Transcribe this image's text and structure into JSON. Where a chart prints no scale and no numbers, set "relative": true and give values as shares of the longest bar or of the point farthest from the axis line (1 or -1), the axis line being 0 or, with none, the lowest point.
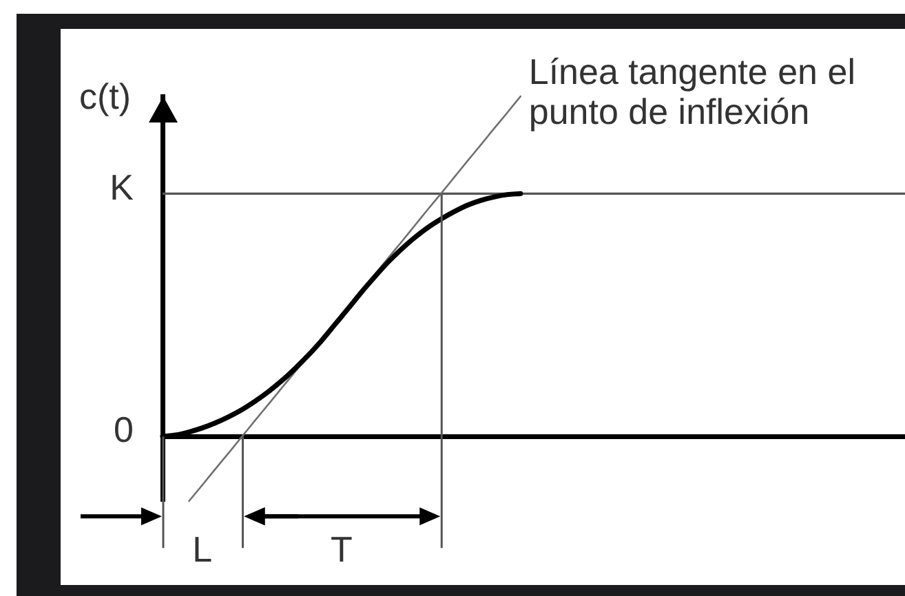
{
  "chart_data": {
    "type": "line",
    "relative": true,
    "ylabel": "c(t)",
    "tick_labels": false,
    "categories": [
      null,
      null,
      null,
      null,
      null,
      null,
      null,
      null,
      null,
      null,
      null,
      null,
      null,
      null,
      null,
      null,
      null,
      null,
      null,
      null,
      null,
      null,
      null,
      null,
      null,
      null,
      null,
      null,
      null,
      null,
      null,
      null,
      null,
      null,
      null,
      null,
      null,
      null,
      null,
      null,
      null,
      null,
      null,
      null,
      null,
      null,
      null,
      null,
      null,
      null,
      null,
      null,
      null,
      null,
      null,
      null,
      null
    ],
    "series": [
      {
        "color": "#000000",
        "values": [
          0,
          0.004,
          0.013,
          0.025,
          0.04,
          0.058,
          0.079,
          0.104,
          0.132,
          0.164,
          0.2,
          0.239,
          0.282,
          0.329,
          0.376,
          0.424,
          0.469,
          0.512,
          0.55,
          0.584,
          0.614,
          0.639,
          0.661,
          0.68,
          0.694,
          0.704,
          0.711,
          0.714,
          null,
          null,
          null,
          null,
          null,
          null,
          null,
          null,
          null,
          null,
          null,
          null,
          null,
          null,
          null,
          null,
          null,
          null,
          null,
          null,
          null,
          null,
          null,
          null,
          null,
          null,
          null,
          null,
          null
        ]
      },
      {
        "color": "#707070",
        "values": [
          null,
          null,
          -0.19,
          -0.143,
          -0.095,
          -0.048,
          0,
          0.048,
          0.095,
          0.143,
          0.19,
          0.238,
          0.286,
          0.333,
          0.381,
          0.429,
          0.476,
          0.524,
          0.571,
          0.619,
          0.667,
          0.714,
          0.762,
          0.81,
          0.857,
          0.905,
          0.952,
          1,
          null,
          null,
          null,
          null,
          null,
          null,
          null,
          null,
          null,
          null,
          null,
          null,
          null,
          null,
          null,
          null,
          null,
          null,
          null,
          null,
          null,
          null,
          null,
          null,
          null,
          null,
          null,
          null,
          null
        ]
      }
    ],
    "ref_lines": [
      {
        "axis": "y",
        "value": 0,
        "label": "0",
        "color": "#000000"
      },
      {
        "axis": "y",
        "value": 0.714,
        "label": "K",
        "color": "#555555"
      }
    ],
    "annotations": [
      "Línea tangente en el punto de inflexión",
      "L",
      "T"
    ]
  }
}
